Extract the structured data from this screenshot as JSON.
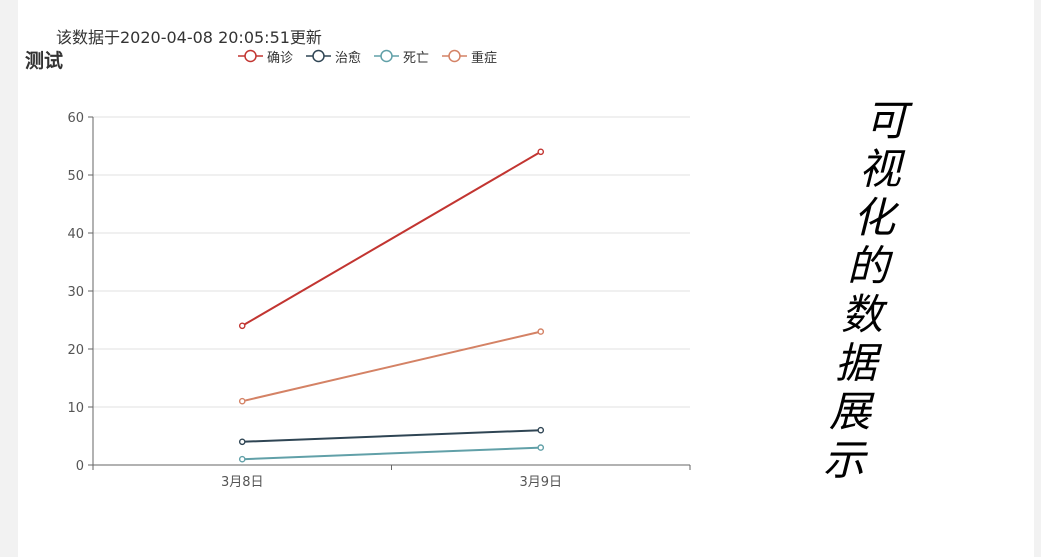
{
  "update_note": "该数据于2020-04-08 20:05:51更新",
  "side_title": "可视化的数据展示",
  "chart_data": {
    "type": "line",
    "title": "测试",
    "categories": [
      "3月8日",
      "3月9日"
    ],
    "ylim": [
      0,
      60
    ],
    "yticks": [
      0,
      10,
      20,
      30,
      40,
      50,
      60
    ],
    "grid": true,
    "legend_position": "top",
    "series": [
      {
        "name": "确诊",
        "values": [
          24,
          54
        ],
        "color": "#c23531"
      },
      {
        "name": "治愈",
        "values": [
          4,
          6
        ],
        "color": "#2f4554"
      },
      {
        "name": "死亡",
        "values": [
          1,
          3
        ],
        "color": "#61a0a8"
      },
      {
        "name": "重症",
        "values": [
          11,
          23
        ],
        "color": "#d48265"
      }
    ]
  }
}
